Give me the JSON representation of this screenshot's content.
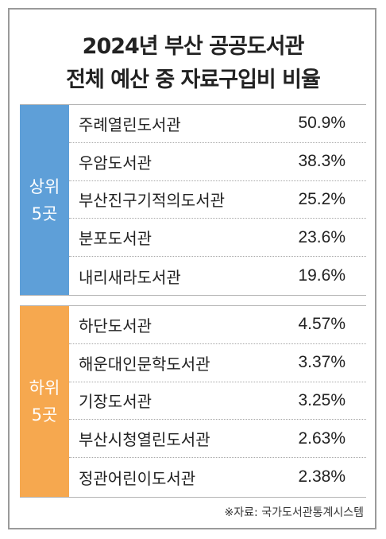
{
  "title": {
    "line1": "2024년 부산 공공도서관",
    "line2": "전체 예산 중 자료구입비 비율"
  },
  "top": {
    "label_line1": "상위",
    "label_line2": "5곳",
    "rows": [
      {
        "name": "주례열린도서관",
        "value": "50.9%"
      },
      {
        "name": "우암도서관",
        "value": "38.3%"
      },
      {
        "name": "부산진구기적의도서관",
        "value": "25.2%"
      },
      {
        "name": "분포도서관",
        "value": "23.6%"
      },
      {
        "name": "내리새라도서관",
        "value": "19.6%"
      }
    ]
  },
  "bottom": {
    "label_line1": "하위",
    "label_line2": "5곳",
    "rows": [
      {
        "name": "하단도서관",
        "value": "4.57%"
      },
      {
        "name": "해운대인문학도서관",
        "value": "3.37%"
      },
      {
        "name": "기장도서관",
        "value": "3.25%"
      },
      {
        "name": "부산시청열린도서관",
        "value": "2.63%"
      },
      {
        "name": "정관어린이도서관",
        "value": "2.38%"
      }
    ]
  },
  "source": "※자료: 국가도서관통계시스템",
  "colors": {
    "top_band": "#5e9fd8",
    "bottom_band": "#f6a84f"
  }
}
